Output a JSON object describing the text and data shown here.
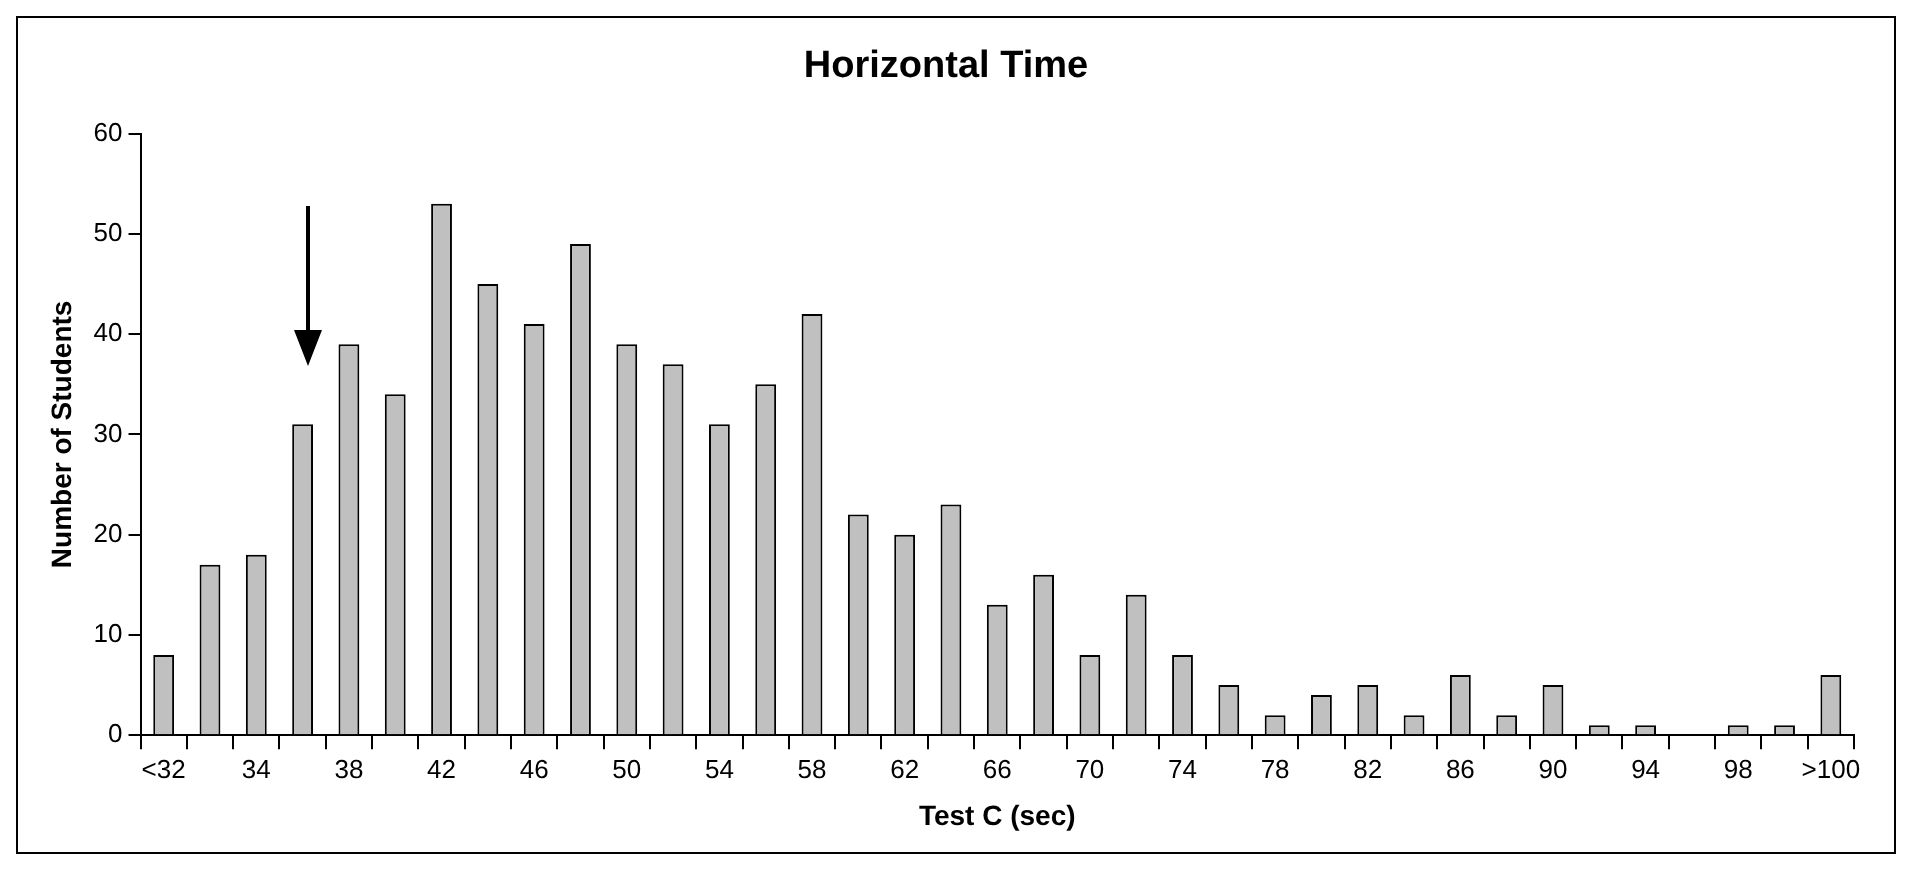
{
  "chart_data": {
    "type": "bar",
    "title": "Horizontal Time",
    "xlabel": "Test C (sec)",
    "ylabel": "Number of Students",
    "categories": [
      "<32",
      null,
      "34",
      null,
      "38",
      null,
      "42",
      null,
      "46",
      null,
      "50",
      null,
      "54",
      null,
      "58",
      null,
      "62",
      null,
      "66",
      null,
      "70",
      null,
      "74",
      null,
      "78",
      null,
      "82",
      null,
      "86",
      null,
      "90",
      null,
      "94",
      null,
      "98",
      null,
      ">100"
    ],
    "values": [
      8,
      17,
      18,
      31,
      39,
      34,
      53,
      45,
      41,
      49,
      39,
      37,
      31,
      35,
      42,
      22,
      20,
      23,
      13,
      16,
      8,
      14,
      8,
      5,
      2,
      4,
      5,
      2,
      6,
      2,
      5,
      1,
      1,
      0,
      1,
      1,
      6
    ],
    "color": "#c0c0c0",
    "ylim": [
      0,
      60
    ],
    "yticks": [
      0,
      10,
      20,
      30,
      40,
      50,
      60
    ],
    "grid": false,
    "legend": false
  }
}
